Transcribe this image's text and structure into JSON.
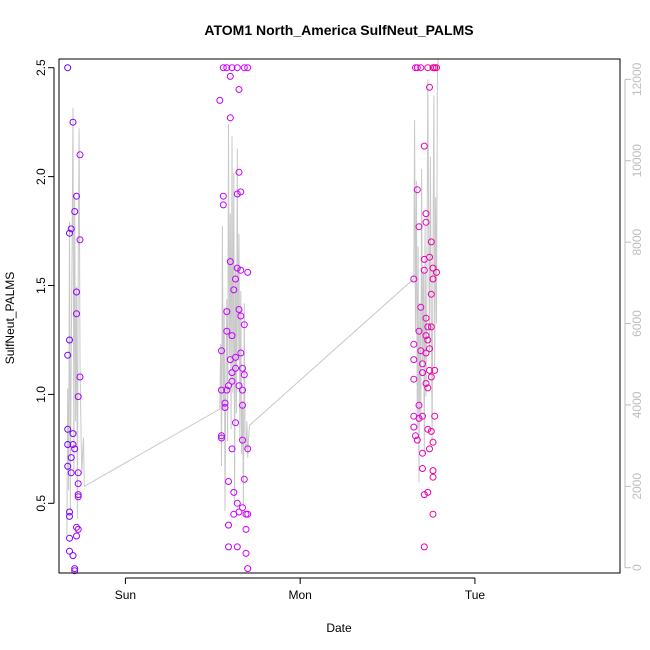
{
  "chart_data": {
    "type": "scatter",
    "title": "ATOM1 North_America SulfNeut_PALMS",
    "xlabel": "Date",
    "ylabel": "SulfNeut_PALMS",
    "x_ticks": [
      "Sun",
      "Mon",
      "Tue"
    ],
    "x_tick_positions_days": [
      0,
      1,
      2
    ],
    "xlim_days": [
      -0.38,
      2.83
    ],
    "ylim": [
      0.18,
      2.54
    ],
    "y_ticks": [
      0.5,
      1.0,
      1.5,
      2.0,
      2.5
    ],
    "y_tick_labels": [
      "0.5",
      "1.0",
      "1.5",
      "2.0",
      "2.5"
    ],
    "y2_label": "",
    "y2lim": [
      -130,
      12500
    ],
    "y2_ticks": [
      0,
      2000,
      4000,
      6000,
      8000,
      10000,
      12000
    ],
    "y2_tick_labels": [
      "0",
      "2000",
      "4000",
      "6000",
      "8000",
      "10000",
      "12000"
    ],
    "series": [
      {
        "values": [
          [
            -0.33,
            2.5
          ],
          [
            -0.33,
            1.18
          ],
          [
            -0.33,
            0.84
          ],
          [
            -0.33,
            0.77
          ],
          [
            -0.33,
            0.67
          ],
          [
            -0.32,
            1.74
          ],
          [
            -0.32,
            1.25
          ],
          [
            -0.32,
            0.46
          ],
          [
            -0.32,
            0.44
          ],
          [
            -0.32,
            0.34
          ],
          [
            -0.32,
            0.28
          ],
          [
            -0.31,
            0.64
          ],
          [
            -0.31,
            0.71
          ],
          [
            -0.31,
            1.76
          ],
          [
            -0.3,
            2.25
          ],
          [
            -0.3,
            0.82
          ],
          [
            -0.3,
            0.77
          ],
          [
            -0.3,
            0.26
          ],
          [
            -0.29,
            0.2
          ],
          [
            -0.29,
            0.19
          ],
          [
            -0.29,
            0.75
          ],
          [
            -0.29,
            1.84
          ],
          [
            -0.28,
            1.47
          ],
          [
            -0.28,
            1.37
          ],
          [
            -0.28,
            1.91
          ],
          [
            -0.28,
            0.39
          ],
          [
            -0.28,
            0.35
          ],
          [
            -0.27,
            0.54
          ],
          [
            -0.27,
            0.59
          ],
          [
            -0.27,
            0.53
          ],
          [
            -0.27,
            0.99
          ],
          [
            -0.27,
            0.64
          ],
          [
            -0.26,
            1.08
          ],
          [
            -0.26,
            1.71
          ],
          [
            -0.26,
            2.1
          ],
          [
            -0.27,
            0.38
          ]
        ],
        "color_start": "#6a00ff",
        "color_end": "#b200ff"
      },
      {
        "values": [
          [
            0.54,
            2.35
          ],
          [
            0.55,
            1.2
          ],
          [
            0.55,
            1.02
          ],
          [
            0.55,
            0.81
          ],
          [
            0.55,
            0.8
          ],
          [
            0.56,
            2.5
          ],
          [
            0.56,
            1.91
          ],
          [
            0.56,
            1.87
          ],
          [
            0.57,
            0.96
          ],
          [
            0.57,
            0.94
          ],
          [
            0.58,
            2.5
          ],
          [
            0.58,
            1.38
          ],
          [
            0.58,
            1.29
          ],
          [
            0.58,
            1.02
          ],
          [
            0.59,
            1.04
          ],
          [
            0.59,
            0.6
          ],
          [
            0.59,
            0.4
          ],
          [
            0.59,
            0.3
          ],
          [
            0.6,
            2.46
          ],
          [
            0.6,
            2.27
          ],
          [
            0.6,
            1.61
          ],
          [
            0.6,
            1.16
          ],
          [
            0.61,
            2.5
          ],
          [
            0.61,
            1.27
          ],
          [
            0.61,
            1.1
          ],
          [
            0.61,
            1.06
          ],
          [
            0.61,
            0.75
          ],
          [
            0.62,
            1.48
          ],
          [
            0.62,
            0.55
          ],
          [
            0.62,
            0.45
          ],
          [
            0.63,
            1.53
          ],
          [
            0.63,
            1.17
          ],
          [
            0.63,
            1.12
          ],
          [
            0.63,
            0.87
          ],
          [
            0.64,
            2.5
          ],
          [
            0.64,
            1.92
          ],
          [
            0.64,
            1.58
          ],
          [
            0.64,
            0.5
          ],
          [
            0.64,
            0.3
          ],
          [
            0.65,
            2.4
          ],
          [
            0.65,
            2.02
          ],
          [
            0.65,
            1.39
          ],
          [
            0.65,
            1.04
          ],
          [
            0.65,
            0.46
          ],
          [
            0.66,
            1.93
          ],
          [
            0.66,
            1.57
          ],
          [
            0.66,
            1.36
          ],
          [
            0.66,
            1.19
          ],
          [
            0.67,
            1.12
          ],
          [
            0.67,
            1.02
          ],
          [
            0.67,
            0.95
          ],
          [
            0.67,
            0.79
          ],
          [
            0.67,
            0.48
          ],
          [
            0.68,
            2.5
          ],
          [
            0.68,
            1.32
          ],
          [
            0.68,
            1.09
          ],
          [
            0.68,
            0.61
          ],
          [
            0.69,
            0.45
          ],
          [
            0.69,
            0.38
          ],
          [
            0.69,
            0.27
          ],
          [
            0.7,
            2.5
          ],
          [
            0.7,
            1.56
          ],
          [
            0.7,
            0.75
          ],
          [
            0.7,
            0.2
          ],
          [
            0.7,
            0.45
          ]
        ],
        "color_start": "#c000ff",
        "color_end": "#d000ff"
      },
      {
        "values": [
          [
            1.65,
            1.53
          ],
          [
            1.65,
            1.23
          ],
          [
            1.65,
            1.16
          ],
          [
            1.65,
            1.07
          ],
          [
            1.65,
            0.9
          ],
          [
            1.65,
            0.85
          ],
          [
            1.66,
            2.5
          ],
          [
            1.66,
            0.81
          ],
          [
            1.67,
            2.5
          ],
          [
            1.67,
            1.94
          ],
          [
            1.67,
            0.79
          ],
          [
            1.68,
            1.77
          ],
          [
            1.68,
            1.29
          ],
          [
            1.68,
            0.95
          ],
          [
            1.68,
            0.89
          ],
          [
            1.69,
            2.5
          ],
          [
            1.69,
            1.4
          ],
          [
            1.69,
            1.2
          ],
          [
            1.7,
            1.14
          ],
          [
            1.7,
            1.1
          ],
          [
            1.7,
            0.9
          ],
          [
            1.7,
            0.73
          ],
          [
            1.7,
            0.66
          ],
          [
            1.71,
            2.14
          ],
          [
            1.71,
            1.62
          ],
          [
            1.71,
            1.57
          ],
          [
            1.71,
            0.54
          ],
          [
            1.71,
            0.3
          ],
          [
            1.72,
            1.83
          ],
          [
            1.72,
            1.79
          ],
          [
            1.72,
            1.35
          ],
          [
            1.72,
            1.27
          ],
          [
            1.72,
            1.19
          ],
          [
            1.72,
            1.05
          ],
          [
            1.73,
            2.5
          ],
          [
            1.73,
            1.31
          ],
          [
            1.73,
            1.25
          ],
          [
            1.73,
            1.03
          ],
          [
            1.73,
            0.84
          ],
          [
            1.73,
            0.55
          ],
          [
            1.74,
            2.41
          ],
          [
            1.74,
            1.63
          ],
          [
            1.74,
            1.21
          ],
          [
            1.74,
            1.11
          ],
          [
            1.74,
            0.75
          ],
          [
            1.75,
            1.7
          ],
          [
            1.75,
            1.46
          ],
          [
            1.75,
            1.31
          ],
          [
            1.75,
            1.08
          ],
          [
            1.75,
            0.83
          ],
          [
            1.76,
            2.5
          ],
          [
            1.76,
            1.58
          ],
          [
            1.76,
            1.53
          ],
          [
            1.76,
            0.78
          ],
          [
            1.76,
            0.62
          ],
          [
            1.76,
            0.45
          ],
          [
            1.76,
            0.65
          ],
          [
            1.77,
            2.5
          ],
          [
            1.77,
            2.5
          ],
          [
            1.77,
            1.11
          ],
          [
            1.77,
            0.9
          ],
          [
            1.78,
            2.5
          ],
          [
            1.78,
            1.56
          ]
        ],
        "color_start": "#e000e0",
        "color_end": "#f00090"
      }
    ],
    "secondary_line": {
      "color": "#c8c8c8",
      "values": [
        [
          -0.335,
          800
        ],
        [
          -0.33,
          4400
        ],
        [
          -0.325,
          1900
        ],
        [
          -0.32,
          8500
        ],
        [
          -0.315,
          1400
        ],
        [
          -0.31,
          5200
        ],
        [
          -0.305,
          7800
        ],
        [
          -0.3,
          11300
        ],
        [
          -0.295,
          2400
        ],
        [
          -0.29,
          9200
        ],
        [
          -0.285,
          3600
        ],
        [
          -0.28,
          6900
        ],
        [
          -0.275,
          1200
        ],
        [
          -0.27,
          7400
        ],
        [
          -0.265,
          10800
        ],
        [
          -0.26,
          5100
        ],
        [
          -0.255,
          3700
        ],
        [
          -0.25,
          2300
        ],
        [
          -0.245,
          2800
        ],
        [
          -0.24,
          3200
        ],
        [
          -0.235,
          2000
        ],
        [
          0.54,
          3900
        ],
        [
          0.545,
          5500
        ],
        [
          0.55,
          2500
        ],
        [
          0.555,
          8400
        ],
        [
          0.56,
          3900
        ],
        [
          0.565,
          6400
        ],
        [
          0.57,
          1400
        ],
        [
          0.575,
          4800
        ],
        [
          0.58,
          6600
        ],
        [
          0.585,
          3100
        ],
        [
          0.59,
          10900
        ],
        [
          0.595,
          5200
        ],
        [
          0.6,
          8700
        ],
        [
          0.605,
          3400
        ],
        [
          0.61,
          10600
        ],
        [
          0.615,
          4300
        ],
        [
          0.62,
          9700
        ],
        [
          0.625,
          1600
        ],
        [
          0.63,
          7400
        ],
        [
          0.635,
          3800
        ],
        [
          0.64,
          10300
        ],
        [
          0.645,
          5100
        ],
        [
          0.65,
          8200
        ],
        [
          0.655,
          3100
        ],
        [
          0.66,
          6800
        ],
        [
          0.665,
          2800
        ],
        [
          0.67,
          4100
        ],
        [
          0.675,
          1500
        ],
        [
          0.68,
          6500
        ],
        [
          0.685,
          3000
        ],
        [
          0.69,
          2900
        ],
        [
          0.695,
          3600
        ],
        [
          0.7,
          2700
        ],
        [
          0.705,
          3200
        ],
        [
          0.71,
          3500
        ],
        [
          1.65,
          7100
        ],
        [
          1.655,
          11000
        ],
        [
          1.66,
          5800
        ],
        [
          1.665,
          9500
        ],
        [
          1.67,
          3400
        ],
        [
          1.675,
          7900
        ],
        [
          1.68,
          2100
        ],
        [
          1.685,
          6500
        ],
        [
          1.69,
          3600
        ],
        [
          1.695,
          9800
        ],
        [
          1.7,
          5100
        ],
        [
          1.705,
          7300
        ],
        [
          1.71,
          2800
        ],
        [
          1.715,
          8400
        ],
        [
          1.72,
          4200
        ],
        [
          1.725,
          6900
        ],
        [
          1.73,
          12000
        ],
        [
          1.735,
          8600
        ],
        [
          1.74,
          5300
        ],
        [
          1.745,
          10100
        ],
        [
          1.75,
          6200
        ],
        [
          1.755,
          3100
        ],
        [
          1.76,
          7800
        ],
        [
          1.765,
          11600
        ],
        [
          1.77,
          4900
        ],
        [
          1.775,
          9100
        ],
        [
          1.78,
          6000
        ],
        [
          1.785,
          12200
        ],
        [
          1.79,
          12500
        ]
      ]
    }
  }
}
